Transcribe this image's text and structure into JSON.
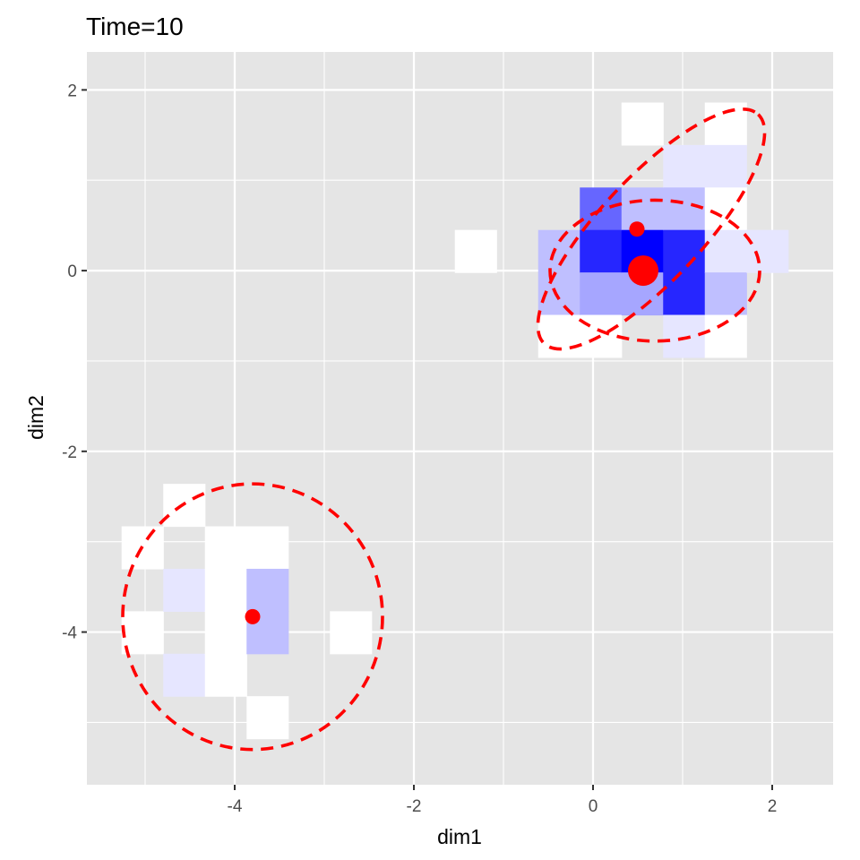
{
  "chart_data": {
    "type": "heatmap",
    "title": "Time=10",
    "xlabel": "dim1",
    "ylabel": "dim2",
    "xlim": [
      -5.65,
      2.68
    ],
    "ylim": [
      -5.69,
      2.42
    ],
    "x_ticks": [
      -4,
      -2,
      0,
      2
    ],
    "x_tick_labels": [
      "-4",
      "-2",
      "0",
      "2"
    ],
    "y_ticks": [
      -4,
      -2,
      0,
      2
    ],
    "y_tick_labels": [
      "-4",
      "-2",
      "0",
      "2"
    ],
    "minor_x": [
      -5,
      -3,
      -1,
      1
    ],
    "minor_y": [
      -5,
      -3,
      -1,
      1
    ],
    "grid": true,
    "panel_background": "#e5e5e5",
    "gridline_color": "#ffffff",
    "tile_size": [
      0.465,
      0.47
    ],
    "color_scale": {
      "low": "#ffffff",
      "high": "#0000ff"
    },
    "tiles": [
      {
        "x": -5.03,
        "y": -3.065,
        "level": 0
      },
      {
        "x": -5.03,
        "y": -4.005,
        "level": 0
      },
      {
        "x": -4.565,
        "y": -2.595,
        "level": 0
      },
      {
        "x": -4.565,
        "y": -3.535,
        "level": 0.1
      },
      {
        "x": -4.565,
        "y": -4.475,
        "level": 0.1
      },
      {
        "x": -4.1,
        "y": -3.065,
        "level": 0
      },
      {
        "x": -4.1,
        "y": -3.535,
        "level": 0
      },
      {
        "x": -4.1,
        "y": -4.005,
        "level": 0
      },
      {
        "x": -4.1,
        "y": -4.475,
        "level": 0
      },
      {
        "x": -3.635,
        "y": -3.065,
        "level": 0
      },
      {
        "x": -3.635,
        "y": -3.535,
        "level": 0.25
      },
      {
        "x": -3.635,
        "y": -4.005,
        "level": 0.25
      },
      {
        "x": -3.635,
        "y": -4.945,
        "level": 0
      },
      {
        "x": -2.705,
        "y": -4.005,
        "level": 0
      },
      {
        "x": -1.31,
        "y": 0.215,
        "level": 0
      },
      {
        "x": -0.38,
        "y": 0.215,
        "level": 0.25
      },
      {
        "x": -0.38,
        "y": -0.255,
        "level": 0.25
      },
      {
        "x": -0.38,
        "y": -0.725,
        "level": 0
      },
      {
        "x": 0.085,
        "y": 0.685,
        "level": 0.6
      },
      {
        "x": 0.085,
        "y": 0.215,
        "level": 0.85
      },
      {
        "x": 0.085,
        "y": -0.255,
        "level": 0.35
      },
      {
        "x": 0.085,
        "y": -0.725,
        "level": 0
      },
      {
        "x": 0.55,
        "y": 1.625,
        "level": 0
      },
      {
        "x": 0.55,
        "y": 0.685,
        "level": 0.25
      },
      {
        "x": 0.55,
        "y": 0.215,
        "level": 1.0
      },
      {
        "x": 0.55,
        "y": -0.255,
        "level": 0.35
      },
      {
        "x": 1.015,
        "y": 1.155,
        "level": 0.1
      },
      {
        "x": 1.015,
        "y": 0.685,
        "level": 0.25
      },
      {
        "x": 1.015,
        "y": 0.215,
        "level": 0.85
      },
      {
        "x": 1.015,
        "y": -0.255,
        "level": 0.85
      },
      {
        "x": 1.015,
        "y": -0.725,
        "level": 0.1
      },
      {
        "x": 1.48,
        "y": 1.625,
        "level": 0
      },
      {
        "x": 1.48,
        "y": 1.155,
        "level": 0.1
      },
      {
        "x": 1.48,
        "y": 0.685,
        "level": 0
      },
      {
        "x": 1.48,
        "y": 0.215,
        "level": 0.1
      },
      {
        "x": 1.48,
        "y": -0.255,
        "level": 0.25
      },
      {
        "x": 1.48,
        "y": -0.725,
        "level": 0
      },
      {
        "x": 1.945,
        "y": 0.215,
        "level": 0.1
      }
    ],
    "points": [
      {
        "x": -3.8,
        "y": -3.83,
        "size": "small"
      },
      {
        "x": 0.49,
        "y": 0.46,
        "size": "small"
      },
      {
        "x": 0.56,
        "y": 0.0,
        "size": "large"
      }
    ],
    "ellipses": [
      {
        "cx": -3.8,
        "cy": -3.83,
        "rx": 1.45,
        "ry": 1.47,
        "angle_deg": 0
      },
      {
        "cx": 0.69,
        "cy": 0.0,
        "rx": 1.17,
        "ry": 0.78,
        "angle_deg": 0
      },
      {
        "cx": 0.65,
        "cy": 0.46,
        "rx": 1.75,
        "ry": 0.57,
        "angle_deg": 47
      }
    ],
    "mark_color": "#ff0000"
  }
}
